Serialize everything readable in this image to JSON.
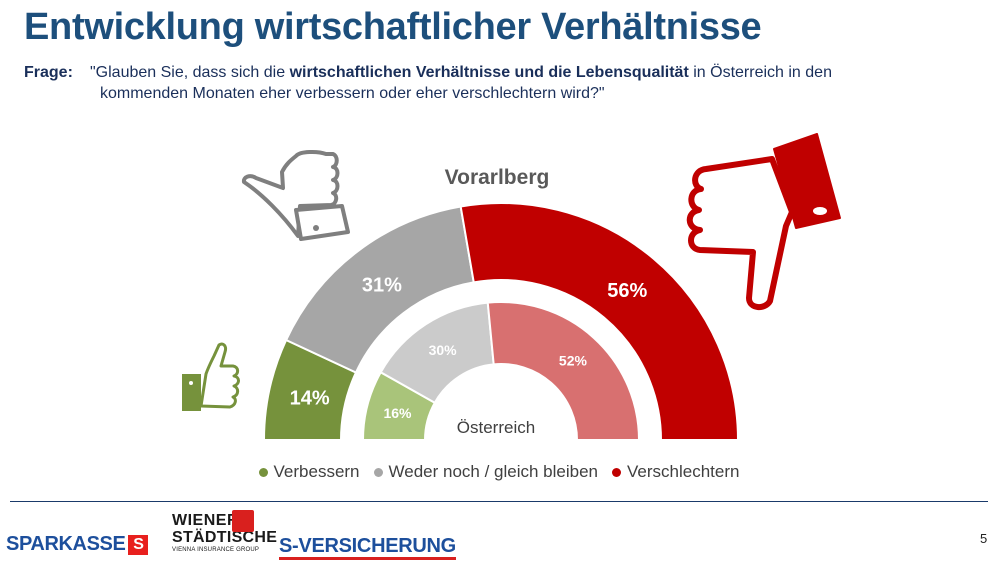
{
  "slide": {
    "title": "Entwicklung wirtschaftlicher Verhältnisse",
    "question_label": "Frage:",
    "question_part1": "\"Glauben Sie, dass sich die ",
    "question_bold": "wirtschaftlichen Verhältnisse und die Lebensqualität",
    "question_part2": " in Österreich in den",
    "question_line2": "kommenden Monaten eher verbessern oder eher verschlechtern wird?\"",
    "page_number": "5"
  },
  "chart_data": {
    "type": "pie",
    "subtype": "nested-semicircle-donut",
    "outer_label": "Vorarlberg",
    "inner_label": "Österreich",
    "categories": [
      "Verbessern",
      "Weder noch / gleich bleiben",
      "Verschlechtern"
    ],
    "series": [
      {
        "name": "Vorarlberg",
        "values": [
          14,
          31,
          56
        ],
        "labels": [
          "14%",
          "31%",
          "56%"
        ]
      },
      {
        "name": "Österreich",
        "values": [
          16,
          30,
          52
        ],
        "labels": [
          "16%",
          "30%",
          "52%"
        ]
      }
    ],
    "outer_colors": [
      "#76923c",
      "#a6a6a6",
      "#c00000"
    ],
    "inner_colors": [
      "#a9c47a",
      "#cbcbcb",
      "#d87070"
    ],
    "legend_position": "bottom"
  },
  "legend": [
    {
      "label": "Verbessern",
      "color": "#76923c"
    },
    {
      "label": "Weder noch / gleich bleiben",
      "color": "#a6a6a6"
    },
    {
      "label": "Verschlechtern",
      "color": "#c00000"
    }
  ],
  "icons": {
    "thumbs_up_small": "thumbs-up-icon",
    "thumb_sideways": "thumb-sideways-icon",
    "thumbs_down": "thumbs-down-icon"
  },
  "logos": {
    "sparkasse": "SPARKASSE",
    "wiener_line1": "WIENER",
    "wiener_line2": "STÄDTISCHE",
    "wiener_line3": "VIENNA INSURANCE GROUP",
    "s_versicherung": "S-VERSICHERUNG"
  }
}
